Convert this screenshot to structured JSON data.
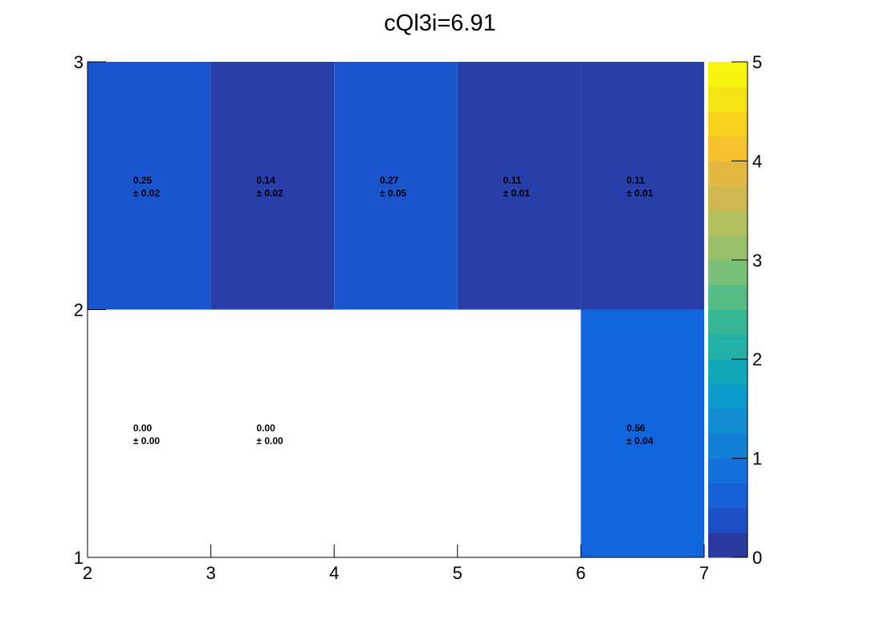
{
  "chart_data": {
    "type": "heatmap",
    "title": "cQl3i=6.91",
    "xlabel": "",
    "ylabel": "",
    "xlim": [
      2,
      7
    ],
    "ylim": [
      1,
      3
    ],
    "x_ticks": [
      "2",
      "3",
      "4",
      "5",
      "6",
      "7"
    ],
    "y_ticks": [
      "1",
      "2",
      "3"
    ],
    "x_edges": [
      2,
      3,
      4,
      5,
      6,
      7
    ],
    "y_edges": [
      1,
      2,
      3
    ],
    "cells": [
      {
        "x": 2,
        "y": 2,
        "value": 0.25,
        "value_text": "0.25",
        "error_text": "± 0.02",
        "color": "#1955cc"
      },
      {
        "x": 3,
        "y": 2,
        "value": 0.14,
        "value_text": "0.14",
        "error_text": "± 0.02",
        "color": "#283ea8"
      },
      {
        "x": 4,
        "y": 2,
        "value": 0.27,
        "value_text": "0.27",
        "error_text": "± 0.05",
        "color": "#1955cc"
      },
      {
        "x": 5,
        "y": 2,
        "value": 0.11,
        "value_text": "0.11",
        "error_text": "± 0.01",
        "color": "#283ea8"
      },
      {
        "x": 6,
        "y": 2,
        "value": 0.11,
        "value_text": "0.11",
        "error_text": "± 0.01",
        "color": "#283ea8"
      },
      {
        "x": 2,
        "y": 1,
        "value": 0.0,
        "value_text": "0.00",
        "error_text": "± 0.00",
        "color": "#ffffff"
      },
      {
        "x": 3,
        "y": 1,
        "value": 0.0,
        "value_text": "0.00",
        "error_text": "± 0.00",
        "color": "#ffffff"
      },
      {
        "x": 6,
        "y": 1,
        "value": 0.56,
        "value_text": "0.56",
        "error_text": "± 0.04",
        "color": "#1166dd"
      }
    ],
    "colorbar": {
      "range": [
        0,
        5
      ],
      "ticks": [
        "0",
        "1",
        "2",
        "3",
        "4",
        "5"
      ],
      "colors": [
        "#2a3a9e",
        "#1c4fc4",
        "#1860d8",
        "#1470dc",
        "#1380d8",
        "#108cd2",
        "#0b9ccc",
        "#11a6b8",
        "#22b1a6",
        "#35b695",
        "#56bc86",
        "#78bf78",
        "#98c06b",
        "#b4bf5f",
        "#cdb94f",
        "#e2b841",
        "#f6c12d",
        "#f8d21f",
        "#f6e316",
        "#f7f40d"
      ]
    }
  }
}
